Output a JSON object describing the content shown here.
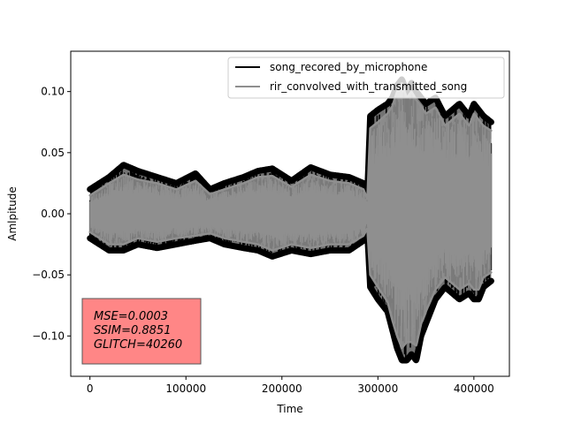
{
  "chart_data": {
    "type": "line",
    "xlabel": "Time",
    "ylabel": "Amlpitude",
    "xlim": [
      -20000,
      437000
    ],
    "ylim": [
      -0.133,
      0.133
    ],
    "x_ticks": [
      0,
      100000,
      200000,
      300000,
      400000
    ],
    "x_tick_labels": [
      "0",
      "100000",
      "200000",
      "300000",
      "400000"
    ],
    "y_ticks": [
      -0.1,
      -0.05,
      0.0,
      0.05,
      0.1
    ],
    "y_tick_labels": [
      "−0.10",
      "−0.05",
      "0.00",
      "0.05",
      "0.10"
    ],
    "legend_placement": "upper-right",
    "series": [
      {
        "name": "song_recored_by_microphone",
        "color": "#000000",
        "envelope": {
          "x": [
            0,
            10000,
            20000,
            35000,
            50000,
            70000,
            90000,
            110000,
            125000,
            140000,
            160000,
            175000,
            190000,
            210000,
            230000,
            250000,
            270000,
            285000,
            289000,
            292000,
            300000,
            310000,
            315000,
            320000,
            325000,
            330000,
            335000,
            340000,
            345000,
            350000,
            360000,
            370000,
            385000,
            395000,
            400000,
            405000,
            410000,
            418000
          ],
          "upper": [
            0.02,
            0.025,
            0.03,
            0.04,
            0.035,
            0.03,
            0.025,
            0.033,
            0.02,
            0.025,
            0.03,
            0.035,
            0.037,
            0.027,
            0.038,
            0.032,
            0.03,
            0.025,
            0.015,
            0.08,
            0.085,
            0.09,
            0.095,
            0.105,
            0.11,
            0.1,
            0.107,
            0.1,
            0.095,
            0.09,
            0.095,
            0.08,
            0.09,
            0.08,
            0.09,
            0.085,
            0.08,
            0.075
          ],
          "lower": [
            -0.02,
            -0.025,
            -0.03,
            -0.03,
            -0.025,
            -0.028,
            -0.025,
            -0.022,
            -0.02,
            -0.025,
            -0.028,
            -0.03,
            -0.035,
            -0.03,
            -0.033,
            -0.03,
            -0.03,
            -0.022,
            -0.015,
            -0.06,
            -0.07,
            -0.08,
            -0.095,
            -0.11,
            -0.12,
            -0.12,
            -0.115,
            -0.12,
            -0.1,
            -0.09,
            -0.07,
            -0.06,
            -0.07,
            -0.065,
            -0.07,
            -0.07,
            -0.06,
            -0.055
          ]
        }
      },
      {
        "name": "rir_convolved_with_transmitted_song",
        "color": "#8f8f8f",
        "envelope": {
          "x": [
            0,
            10000,
            20000,
            35000,
            50000,
            70000,
            90000,
            110000,
            125000,
            140000,
            160000,
            175000,
            190000,
            210000,
            230000,
            250000,
            270000,
            285000,
            289000,
            292000,
            300000,
            310000,
            315000,
            320000,
            325000,
            330000,
            335000,
            340000,
            345000,
            350000,
            360000,
            370000,
            385000,
            395000,
            400000,
            405000,
            410000,
            418000
          ],
          "upper": [
            0.015,
            0.02,
            0.025,
            0.032,
            0.028,
            0.025,
            0.02,
            0.027,
            0.016,
            0.02,
            0.025,
            0.03,
            0.031,
            0.022,
            0.032,
            0.027,
            0.025,
            0.02,
            0.012,
            0.07,
            0.075,
            0.082,
            0.088,
            0.1,
            0.107,
            0.095,
            0.1,
            0.093,
            0.088,
            0.082,
            0.087,
            0.072,
            0.082,
            0.072,
            0.082,
            0.077,
            0.072,
            0.068
          ],
          "lower": [
            -0.015,
            -0.02,
            -0.025,
            -0.025,
            -0.02,
            -0.023,
            -0.02,
            -0.018,
            -0.016,
            -0.02,
            -0.023,
            -0.025,
            -0.03,
            -0.025,
            -0.028,
            -0.025,
            -0.025,
            -0.018,
            -0.012,
            -0.05,
            -0.06,
            -0.072,
            -0.087,
            -0.1,
            -0.11,
            -0.105,
            -0.105,
            -0.108,
            -0.09,
            -0.08,
            -0.062,
            -0.052,
            -0.062,
            -0.057,
            -0.062,
            -0.062,
            -0.052,
            -0.048
          ]
        }
      }
    ],
    "annotation": {
      "lines": [
        "MSE=0.0003",
        "SSIM=0.8851",
        "GLITCH=40260"
      ],
      "background": "#ff7f7f"
    }
  }
}
